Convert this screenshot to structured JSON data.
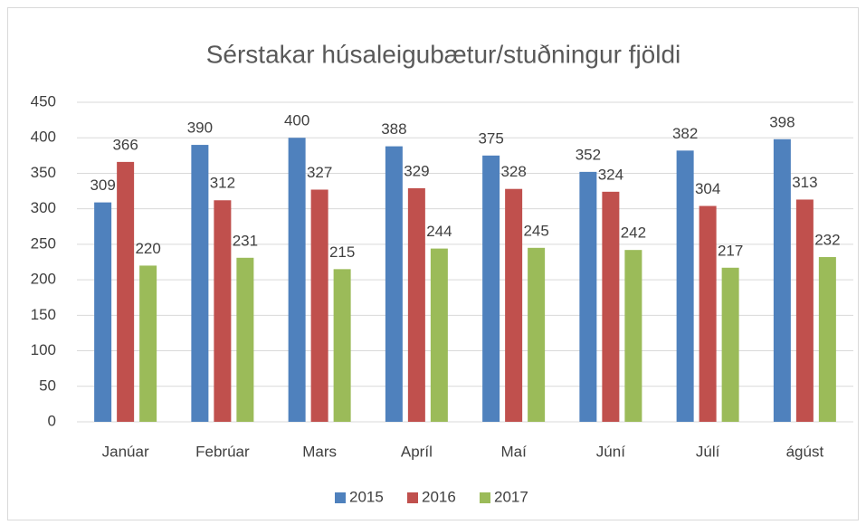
{
  "chart_data": {
    "type": "bar",
    "title": "Sérstakar húsaleigubætur/stuðningur fjöldi",
    "categories": [
      "Janúar",
      "Febrúar",
      "Mars",
      "Apríl",
      "Maí",
      "Júní",
      "Júlí",
      "ágúst"
    ],
    "series": [
      {
        "name": "2015",
        "color": "#4f81bd",
        "values": [
          309,
          390,
          400,
          388,
          375,
          352,
          382,
          398
        ]
      },
      {
        "name": "2016",
        "color": "#c0504d",
        "values": [
          366,
          312,
          327,
          329,
          328,
          324,
          304,
          313
        ]
      },
      {
        "name": "2017",
        "color": "#9bbb59",
        "values": [
          220,
          231,
          215,
          244,
          245,
          242,
          217,
          232
        ]
      }
    ],
    "ylim": [
      0,
      450
    ],
    "yticks": [
      0,
      50,
      100,
      150,
      200,
      250,
      300,
      350,
      400,
      450
    ],
    "grid": true,
    "legend": "bottom"
  }
}
